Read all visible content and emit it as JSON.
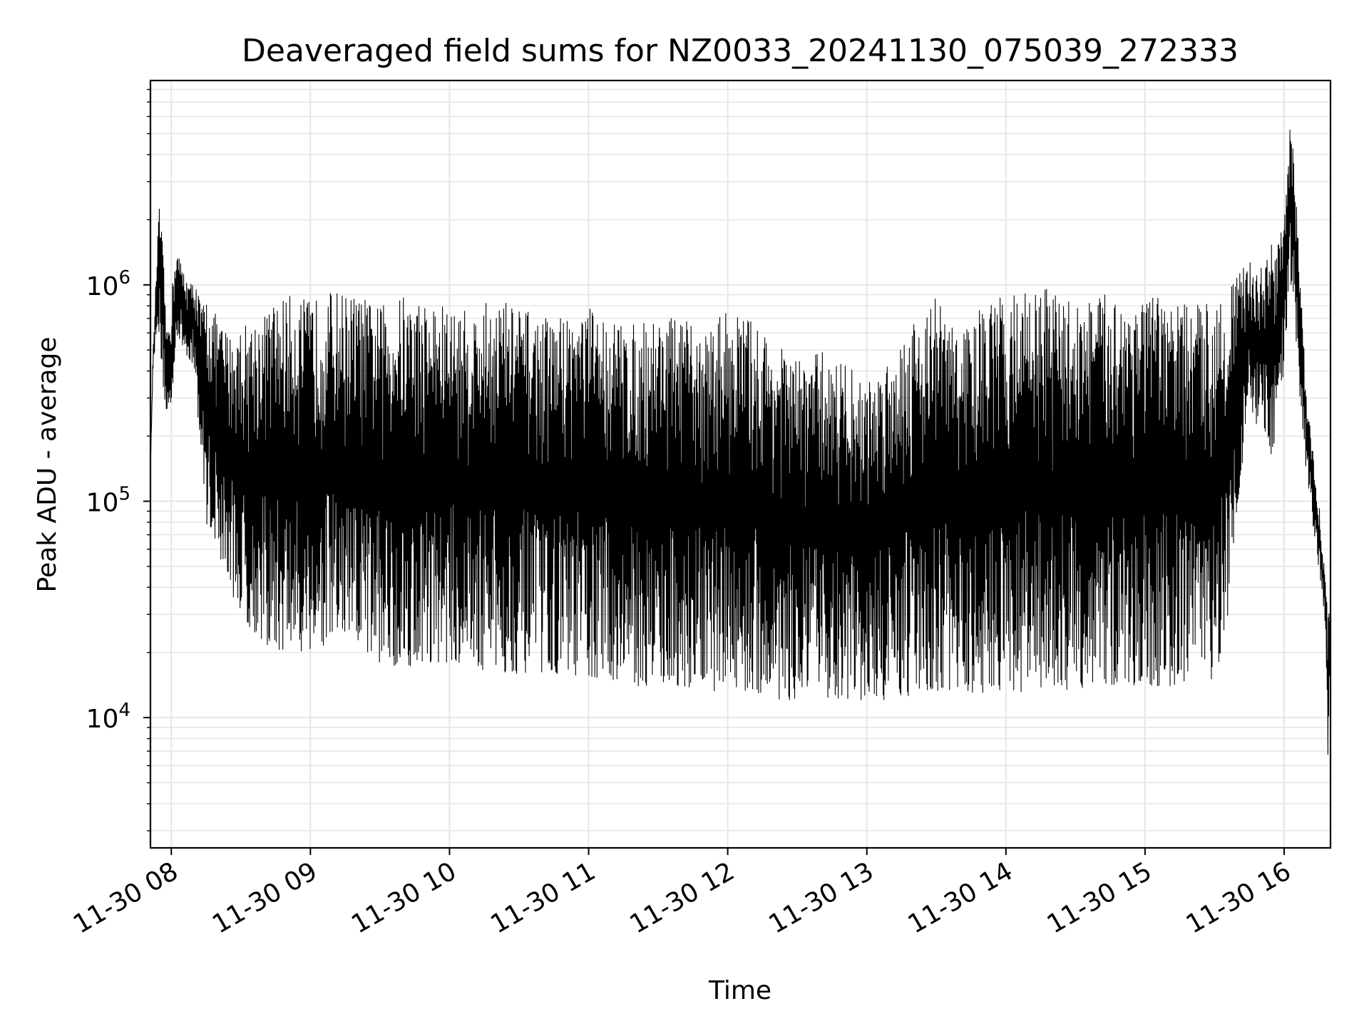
{
  "chart_data": {
    "type": "line",
    "title": "Deaveraged field sums for NZ0033_20241130_075039_272333",
    "xlabel": "Time",
    "ylabel": "Peak ADU - average",
    "y_scale": "log",
    "ylim": [
      2500,
      8800000
    ],
    "xlim": [
      "2024-11-30 07:51",
      "2024-11-30 16:20"
    ],
    "x_ticks": [
      {
        "value": "2024-11-30 08:00",
        "label": "11-30 08"
      },
      {
        "value": "2024-11-30 09:00",
        "label": "11-30 09"
      },
      {
        "value": "2024-11-30 10:00",
        "label": "11-30 10"
      },
      {
        "value": "2024-11-30 11:00",
        "label": "11-30 11"
      },
      {
        "value": "2024-11-30 12:00",
        "label": "11-30 12"
      },
      {
        "value": "2024-11-30 13:00",
        "label": "11-30 13"
      },
      {
        "value": "2024-11-30 14:00",
        "label": "11-30 14"
      },
      {
        "value": "2024-11-30 15:00",
        "label": "11-30 15"
      },
      {
        "value": "2024-11-30 16:00",
        "label": "11-30 16"
      }
    ],
    "y_ticks": [
      {
        "value": 10000,
        "base": "10",
        "exp": "4"
      },
      {
        "value": 100000,
        "base": "10",
        "exp": "5"
      },
      {
        "value": 1000000,
        "base": "10",
        "exp": "6"
      }
    ],
    "grid": true,
    "line_color": "#000000",
    "grid_color": "#e6e6e6",
    "series": [
      {
        "x": [
          "2024-11-30 07:51",
          "2024-11-30 07:52",
          "2024-11-30 07:54",
          "2024-11-30 07:55",
          "2024-11-30 07:57",
          "2024-11-30 07:58",
          "2024-11-30 08:00",
          "2024-11-30 08:02",
          "2024-11-30 08:05",
          "2024-11-30 08:08",
          "2024-11-30 08:10",
          "2024-11-30 08:13",
          "2024-11-30 08:15",
          "2024-11-30 08:20",
          "2024-11-30 08:25",
          "2024-11-30 08:30",
          "2024-11-30 08:35",
          "2024-11-30 08:40",
          "2024-11-30 08:45",
          "2024-11-30 08:50",
          "2024-11-30 09:00",
          "2024-11-30 09:10",
          "2024-11-30 09:20",
          "2024-11-30 09:30",
          "2024-11-30 09:40",
          "2024-11-30 09:50",
          "2024-11-30 10:00",
          "2024-11-30 10:10",
          "2024-11-30 10:20",
          "2024-11-30 10:30",
          "2024-11-30 10:40",
          "2024-11-30 10:50",
          "2024-11-30 11:00",
          "2024-11-30 11:10",
          "2024-11-30 11:20",
          "2024-11-30 11:30",
          "2024-11-30 11:40",
          "2024-11-30 11:50",
          "2024-11-30 12:00",
          "2024-11-30 12:10",
          "2024-11-30 12:20",
          "2024-11-30 12:30",
          "2024-11-30 12:40",
          "2024-11-30 12:50",
          "2024-11-30 13:00",
          "2024-11-30 13:10",
          "2024-11-30 13:20",
          "2024-11-30 13:30",
          "2024-11-30 13:40",
          "2024-11-30 13:50",
          "2024-11-30 14:00",
          "2024-11-30 14:10",
          "2024-11-30 14:20",
          "2024-11-30 14:30",
          "2024-11-30 14:40",
          "2024-11-30 14:50",
          "2024-11-30 15:00",
          "2024-11-30 15:10",
          "2024-11-30 15:20",
          "2024-11-30 15:30",
          "2024-11-30 15:35",
          "2024-11-30 15:40",
          "2024-11-30 15:45",
          "2024-11-30 15:50",
          "2024-11-30 15:55",
          "2024-11-30 16:00",
          "2024-11-30 16:03",
          "2024-11-30 16:05",
          "2024-11-30 16:07",
          "2024-11-30 16:10",
          "2024-11-30 16:13",
          "2024-11-30 16:16",
          "2024-11-30 16:18",
          "2024-11-30 16:19",
          "2024-11-30 16:20"
        ],
        "y_high": [
          140000,
          450000,
          1600000,
          2500000,
          1100000,
          600000,
          900000,
          1500000,
          1200000,
          1000000,
          1100000,
          800000,
          900000,
          700000,
          600000,
          650000,
          700000,
          750000,
          850000,
          900000,
          850000,
          950000,
          900000,
          800000,
          900000,
          850000,
          800000,
          750000,
          900000,
          800000,
          700000,
          750000,
          800000,
          700000,
          650000,
          750000,
          700000,
          600000,
          800000,
          700000,
          550000,
          450000,
          500000,
          450000,
          350000,
          500000,
          700000,
          900000,
          600000,
          800000,
          900000,
          1000000,
          950000,
          850000,
          900000,
          900000,
          900000,
          850000,
          800000,
          900000,
          1000000,
          1100000,
          1300000,
          1200000,
          1600000,
          1900000,
          6500000,
          3000000,
          1000000,
          300000,
          150000,
          80000,
          40000,
          30000,
          40000
        ],
        "y_low": [
          140000,
          380000,
          700000,
          500000,
          300000,
          250000,
          220000,
          600000,
          500000,
          450000,
          400000,
          150000,
          80000,
          60000,
          40000,
          30000,
          25000,
          22000,
          20000,
          20000,
          20000,
          22000,
          20000,
          18000,
          17000,
          18000,
          18000,
          17000,
          16000,
          16000,
          16000,
          16000,
          15000,
          15000,
          14000,
          14000,
          14000,
          13500,
          13000,
          13000,
          12000,
          12000,
          12500,
          12000,
          12000,
          12000,
          12500,
          13000,
          13000,
          13000,
          13500,
          13000,
          13000,
          13500,
          13500,
          14000,
          14000,
          14000,
          14500,
          15000,
          25000,
          100000,
          250000,
          200000,
          150000,
          400000,
          1000000,
          600000,
          250000,
          120000,
          70000,
          40000,
          25000,
          5000,
          20000
        ]
      }
    ]
  }
}
